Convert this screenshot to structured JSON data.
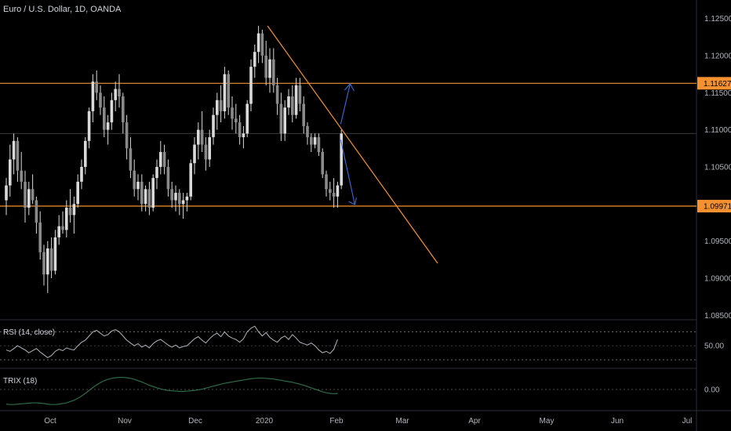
{
  "header": {
    "title": "Euro / U.S. Dollar, 1D, OANDA"
  },
  "indicators": {
    "rsi_label": "RSI (14, close)",
    "trix_label": "TRIX (18)"
  },
  "colors": {
    "background": "#000000",
    "candle": "#d9d9d9",
    "level": "#f5922f",
    "arrow": "#3a6bd6",
    "indicator": "#b2b5be",
    "trix": "#2e6b47",
    "axis_text": "#b2b5be",
    "price_badge_bg": "#f5922f"
  },
  "chart_data": [
    {
      "type": "candlestick",
      "title": "Euro / U.S. Dollar, 1D, OANDA",
      "x_ticks": [
        "Oct",
        "Nov",
        "Dec",
        "2020",
        "Feb",
        "Mar",
        "Apr",
        "May",
        "Jun",
        "Jul"
      ],
      "y_ticks": [
        "1.12500",
        "1.12000",
        "1.11500",
        "1.11000",
        "1.10500",
        "1.10000",
        "1.09500",
        "1.09000",
        "1.08500"
      ],
      "ylim": [
        1.0845,
        1.1275
      ],
      "ohlc": [
        [
          1.1005,
          1.1035,
          1.0985,
          1.1025
        ],
        [
          1.1025,
          1.108,
          1.101,
          1.106
        ],
        [
          1.106,
          1.1095,
          1.104,
          1.1085
        ],
        [
          1.1085,
          1.109,
          1.103,
          1.1045
        ],
        [
          1.1045,
          1.107,
          1.102,
          1.103
        ],
        [
          1.103,
          1.1045,
          1.0975,
          1.0995
        ],
        [
          1.0995,
          1.103,
          1.0985,
          1.102
        ],
        [
          1.102,
          1.104,
          1.1,
          1.1005
        ],
        [
          1.1005,
          1.101,
          1.096,
          1.0975
        ],
        [
          1.0975,
          1.099,
          1.0925,
          1.0935
        ],
        [
          1.0935,
          1.0945,
          1.089,
          1.0905
        ],
        [
          1.0905,
          1.095,
          1.088,
          1.094
        ],
        [
          1.094,
          1.0955,
          1.09,
          1.091
        ],
        [
          1.091,
          1.0965,
          1.0905,
          1.0955
        ],
        [
          1.0955,
          1.0985,
          1.0945,
          1.097
        ],
        [
          1.097,
          1.099,
          1.096,
          1.0965
        ],
        [
          1.0965,
          1.1005,
          1.0955,
          1.0995
        ],
        [
          1.0995,
          1.102,
          1.0975,
          1.0985
        ],
        [
          1.0985,
          1.101,
          1.096,
          1.1
        ],
        [
          1.1,
          1.104,
          1.0995,
          1.103
        ],
        [
          1.103,
          1.106,
          1.102,
          1.105
        ],
        [
          1.105,
          1.109,
          1.104,
          1.1085
        ],
        [
          1.1085,
          1.113,
          1.1075,
          1.1125
        ],
        [
          1.1125,
          1.1175,
          1.111,
          1.1165
        ],
        [
          1.1165,
          1.118,
          1.114,
          1.115
        ],
        [
          1.115,
          1.116,
          1.112,
          1.113
        ],
        [
          1.113,
          1.1145,
          1.109,
          1.11
        ],
        [
          1.11,
          1.112,
          1.108,
          1.111
        ],
        [
          1.111,
          1.115,
          1.11,
          1.114
        ],
        [
          1.114,
          1.1165,
          1.1125,
          1.1155
        ],
        [
          1.1155,
          1.1175,
          1.113,
          1.1145
        ],
        [
          1.1145,
          1.115,
          1.1095,
          1.111
        ],
        [
          1.111,
          1.112,
          1.106,
          1.1075
        ],
        [
          1.1075,
          1.109,
          1.1035,
          1.1045
        ],
        [
          1.1045,
          1.106,
          1.101,
          1.102
        ],
        [
          1.102,
          1.104,
          1.1005,
          1.103
        ],
        [
          1.103,
          1.104,
          1.099,
          1.1
        ],
        [
          1.1,
          1.1025,
          1.099,
          1.102
        ],
        [
          1.102,
          1.103,
          1.0985,
          1.0995
        ],
        [
          1.0995,
          1.104,
          1.099,
          1.1035
        ],
        [
          1.1035,
          1.106,
          1.102,
          1.105
        ],
        [
          1.105,
          1.1085,
          1.104,
          1.107
        ],
        [
          1.107,
          1.108,
          1.104,
          1.105
        ],
        [
          1.105,
          1.106,
          1.101,
          1.102
        ],
        [
          1.102,
          1.103,
          1.0995,
          1.1005
        ],
        [
          1.1005,
          1.1025,
          1.099,
          1.1015
        ],
        [
          1.1015,
          1.102,
          1.0985,
          1.1
        ],
        [
          1.1,
          1.1015,
          1.098,
          1.1005
        ],
        [
          1.1005,
          1.1015,
          1.099,
          1.101
        ],
        [
          1.101,
          1.106,
          1.1005,
          1.1055
        ],
        [
          1.1055,
          1.109,
          1.104,
          1.108
        ],
        [
          1.108,
          1.111,
          1.106,
          1.11
        ],
        [
          1.11,
          1.1125,
          1.107,
          1.108
        ],
        [
          1.108,
          1.109,
          1.1045,
          1.106
        ],
        [
          1.106,
          1.11,
          1.105,
          1.109
        ],
        [
          1.109,
          1.113,
          1.108,
          1.112
        ],
        [
          1.112,
          1.115,
          1.11,
          1.114
        ],
        [
          1.114,
          1.116,
          1.111,
          1.1125
        ],
        [
          1.1125,
          1.1185,
          1.1115,
          1.1175
        ],
        [
          1.1175,
          1.118,
          1.112,
          1.113
        ],
        [
          1.113,
          1.1145,
          1.11,
          1.1115
        ],
        [
          1.1115,
          1.1135,
          1.1095,
          1.111
        ],
        [
          1.111,
          1.112,
          1.108,
          1.109
        ],
        [
          1.109,
          1.1105,
          1.1075,
          1.1095
        ],
        [
          1.1095,
          1.114,
          1.109,
          1.1135
        ],
        [
          1.1135,
          1.1195,
          1.1125,
          1.1185
        ],
        [
          1.1185,
          1.1215,
          1.117,
          1.1205
        ],
        [
          1.1205,
          1.124,
          1.119,
          1.123
        ],
        [
          1.123,
          1.1235,
          1.119,
          1.12
        ],
        [
          1.12,
          1.122,
          1.116,
          1.117
        ],
        [
          1.117,
          1.121,
          1.115,
          1.1195
        ],
        [
          1.1195,
          1.121,
          1.115,
          1.116
        ],
        [
          1.116,
          1.117,
          1.112,
          1.1135
        ],
        [
          1.1135,
          1.115,
          1.1085,
          1.1095
        ],
        [
          1.1095,
          1.114,
          1.1085,
          1.113
        ],
        [
          1.113,
          1.1155,
          1.112,
          1.1145
        ],
        [
          1.1145,
          1.116,
          1.111,
          1.112
        ],
        [
          1.112,
          1.117,
          1.1115,
          1.116
        ],
        [
          1.116,
          1.117,
          1.1125,
          1.1135
        ],
        [
          1.1135,
          1.1145,
          1.1095,
          1.1105
        ],
        [
          1.1105,
          1.111,
          1.108,
          1.109
        ],
        [
          1.109,
          1.1095,
          1.107,
          1.108
        ],
        [
          1.108,
          1.1095,
          1.1075,
          1.109
        ],
        [
          1.109,
          1.1095,
          1.1065,
          1.107
        ],
        [
          1.107,
          1.1075,
          1.1035,
          1.104
        ],
        [
          1.104,
          1.1045,
          1.101,
          1.102
        ],
        [
          1.102,
          1.103,
          1.1005,
          1.1015
        ],
        [
          1.1015,
          1.1035,
          1.0995,
          1.101
        ],
        [
          1.101,
          1.103,
          1.0995,
          1.1025
        ],
        [
          1.1025,
          1.11,
          1.102,
          1.1095
        ]
      ],
      "trend_line": [
        [
          1.124,
          1.092
        ]
      ],
      "levels": [
        1.11627,
        1.09971
      ],
      "last_price_line": 1.1095,
      "price_badges": [
        "1.11627",
        "1.09971"
      ],
      "arrows": [
        "up",
        "down"
      ]
    },
    {
      "type": "line",
      "name": "RSI (14, close)",
      "y_ticks": [
        "50.00"
      ],
      "bands": [
        70,
        30
      ],
      "ylim": [
        20,
        85
      ],
      "values": [
        44,
        42,
        46,
        50,
        47,
        44,
        40,
        43,
        46,
        41,
        37,
        33,
        36,
        42,
        45,
        43,
        47,
        45,
        44,
        50,
        55,
        58,
        64,
        70,
        72,
        68,
        64,
        66,
        71,
        73,
        70,
        64,
        58,
        54,
        50,
        53,
        48,
        51,
        47,
        53,
        57,
        59,
        55,
        51,
        48,
        51,
        47,
        49,
        50,
        55,
        60,
        63,
        58,
        54,
        60,
        65,
        68,
        63,
        70,
        64,
        61,
        59,
        55,
        60,
        70,
        75,
        78,
        70,
        64,
        69,
        62,
        58,
        55,
        61,
        64,
        59,
        66,
        61,
        55,
        53,
        51,
        54,
        50,
        44,
        40,
        42,
        39,
        45,
        59
      ]
    },
    {
      "type": "line",
      "name": "TRIX (18)",
      "y_ticks": [
        "0.00"
      ],
      "ylim": [
        -0.06,
        0.06
      ],
      "zero_line": 0.0,
      "values": [
        -0.045,
        -0.046,
        -0.046,
        -0.045,
        -0.044,
        -0.043,
        -0.042,
        -0.041,
        -0.041,
        -0.042,
        -0.043,
        -0.045,
        -0.046,
        -0.046,
        -0.045,
        -0.043,
        -0.041,
        -0.037,
        -0.033,
        -0.027,
        -0.02,
        -0.012,
        -0.003,
        0.006,
        0.014,
        0.021,
        0.027,
        0.031,
        0.034,
        0.036,
        0.037,
        0.037,
        0.036,
        0.034,
        0.031,
        0.027,
        0.023,
        0.018,
        0.013,
        0.009,
        0.005,
        0.002,
        -0.001,
        -0.003,
        -0.004,
        -0.005,
        -0.006,
        -0.006,
        -0.005,
        -0.004,
        -0.003,
        -0.001,
        0.001,
        0.004,
        0.007,
        0.01,
        0.013,
        0.016,
        0.019,
        0.021,
        0.023,
        0.025,
        0.027,
        0.029,
        0.031,
        0.033,
        0.034,
        0.035,
        0.035,
        0.034,
        0.033,
        0.032,
        0.03,
        0.028,
        0.026,
        0.024,
        0.022,
        0.019,
        0.016,
        0.013,
        0.009,
        0.005,
        0.001,
        -0.003,
        -0.007,
        -0.01,
        -0.012,
        -0.013,
        -0.012
      ]
    }
  ]
}
